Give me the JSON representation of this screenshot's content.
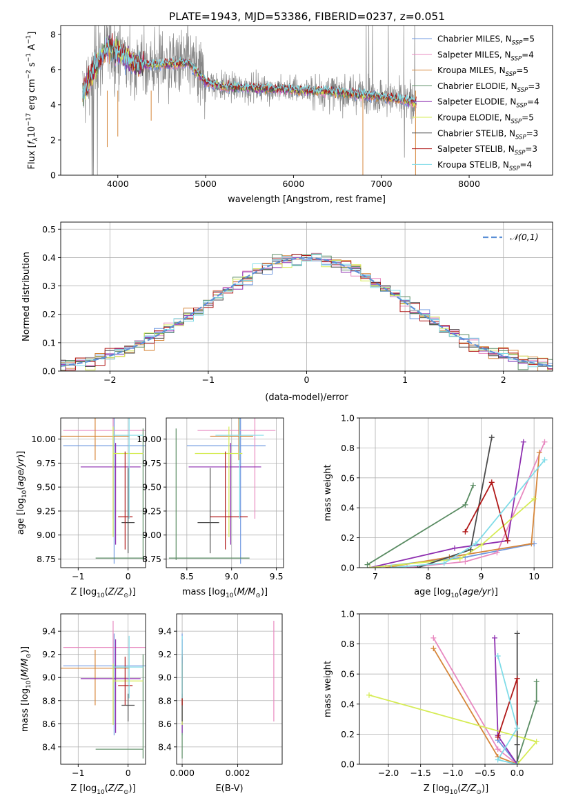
{
  "figure_title": "PLATE=1943, MJD=53386, FIBERID=0237, z=0.051",
  "colors": {
    "Chabrier MILES": "#6f98e0",
    "Salpeter MILES": "#e889c0",
    "Kroupa MILES": "#d6863a",
    "Chabrier ELODIE": "#5a8c63",
    "Salpeter ELODIE": "#8e2fb0",
    "Kroupa ELODIE": "#d6ec56",
    "Chabrier STELIB": "#4a4a4a",
    "Salpeter STELIB": "#b01818",
    "Kroupa STELIB": "#80dce8",
    "data": "#888888",
    "normal": "#5b8fd6"
  },
  "chart_data": [
    {
      "id": "spectrum",
      "type": "line",
      "xlabel": "wavelength [Angstrom, rest frame]",
      "ylabel": "Flux [f_λ 10^-17 erg cm^-2 s^-1 A^-1]",
      "xlim": [
        3350,
        8950
      ],
      "ylim": [
        0,
        8.5
      ],
      "xticks": [
        4000,
        5000,
        6000,
        7000,
        8000
      ],
      "yticks": [
        0,
        2,
        4,
        6,
        8
      ],
      "legend_position": "upper-right",
      "legend": [
        {
          "label": "Chabrier MILES, N",
          "sub": "SSP",
          "suffix": "=5"
        },
        {
          "label": "Salpeter MILES, N",
          "sub": "SSP",
          "suffix": "=4"
        },
        {
          "label": "Kroupa MILES, N",
          "sub": "SSP",
          "suffix": "=5"
        },
        {
          "label": "Chabrier ELODIE, N",
          "sub": "SSP",
          "suffix": "=3"
        },
        {
          "label": "Salpeter ELODIE, N",
          "sub": "SSP",
          "suffix": "=4"
        },
        {
          "label": "Kroupa ELODIE, N",
          "sub": "SSP",
          "suffix": "=5"
        },
        {
          "label": "Chabrier STELIB, N",
          "sub": "SSP",
          "suffix": "=3"
        },
        {
          "label": "Salpeter STELIB, N",
          "sub": "SSP",
          "suffix": "=3"
        },
        {
          "label": "Kroupa STELIB, N",
          "sub": "SSP",
          "suffix": "=4"
        }
      ],
      "model_trend": [
        [
          3600,
          4.6
        ],
        [
          3700,
          5.6
        ],
        [
          3800,
          6.6
        ],
        [
          3900,
          7.3
        ],
        [
          4000,
          7.0
        ],
        [
          4100,
          6.7
        ],
        [
          4200,
          6.3
        ],
        [
          4400,
          6.3
        ],
        [
          4600,
          6.3
        ],
        [
          4800,
          6.4
        ],
        [
          5000,
          5.3
        ],
        [
          5200,
          5.0
        ],
        [
          5500,
          4.95
        ],
        [
          6000,
          4.85
        ],
        [
          6500,
          4.7
        ],
        [
          7000,
          4.45
        ],
        [
          7400,
          4.15
        ]
      ]
    },
    {
      "id": "residuals",
      "type": "bar",
      "xlabel": "(data-model)/error",
      "ylabel": "Normed distribution",
      "xlim": [
        -2.5,
        2.5
      ],
      "ylim": [
        0,
        0.525
      ],
      "xticks": [
        -2,
        -1,
        0,
        1,
        2
      ],
      "yticks": [
        0.0,
        0.1,
        0.2,
        0.3,
        0.4,
        0.5
      ],
      "bin_width": 0.1,
      "legend": "𝒩(0,1)",
      "legend_position": "upper-right",
      "grid": true
    },
    {
      "id": "age_vs_Z",
      "type": "scatter",
      "xlabel": "Z [log10(Z/Z⊙)]",
      "ylabel": "age [log10(age/yr)]",
      "xlim": [
        -1.35,
        0.35
      ],
      "ylim": [
        8.66,
        10.22
      ],
      "xticks": [
        -1,
        0
      ],
      "yticks": [
        8.75,
        9.0,
        9.25,
        9.5,
        9.75,
        10.0
      ],
      "grid": true
    },
    {
      "id": "age_vs_mass",
      "type": "scatter",
      "xlabel": "mass [log10(M/M⊙)]",
      "xlim": [
        8.27,
        9.58
      ],
      "ylim": [
        8.66,
        10.22
      ],
      "xticks": [
        8.5,
        9.0,
        9.5
      ],
      "yticks": [
        8.75,
        9.0,
        9.25,
        9.5,
        9.75,
        10.0
      ],
      "grid": true
    },
    {
      "id": "weight_vs_age",
      "type": "line",
      "xlabel": "age [log10(age/yr)]",
      "ylabel": "mass weight",
      "xlim": [
        6.7,
        10.35
      ],
      "ylim": [
        0,
        1.0
      ],
      "xticks": [
        7,
        8,
        9,
        10
      ],
      "yticks": [
        0.0,
        0.2,
        0.4,
        0.6,
        0.8,
        1.0
      ],
      "grid": true
    },
    {
      "id": "mass_vs_Z",
      "type": "scatter",
      "xlabel": "Z [log10(Z/Z⊙)]",
      "ylabel": "mass [log10(M/M⊙)]",
      "xlim": [
        -1.35,
        0.35
      ],
      "ylim": [
        8.25,
        9.55
      ],
      "xticks": [
        -1,
        0
      ],
      "yticks": [
        8.4,
        8.6,
        8.8,
        9.0,
        9.2,
        9.4
      ],
      "grid": true
    },
    {
      "id": "mass_vs_ebv",
      "type": "scatter",
      "xlabel": "E(B-V)",
      "xlim": [
        -0.0002,
        0.0036
      ],
      "ylim": [
        8.25,
        9.55
      ],
      "xticks": [
        0.0,
        0.002
      ],
      "xtick_labels": [
        "0.000",
        "0.002"
      ],
      "yticks": [
        8.4,
        8.6,
        8.8,
        9.0,
        9.2,
        9.4
      ],
      "grid": true
    },
    {
      "id": "weight_vs_Z",
      "type": "line",
      "xlabel": "Z [log10(Z/Z⊙)]",
      "ylabel": "mass weight",
      "xlim": [
        -2.45,
        0.55
      ],
      "ylim": [
        0,
        1.0
      ],
      "xticks": [
        -2.0,
        -1.5,
        -1.0,
        -0.5,
        0.0
      ],
      "yticks": [
        0.0,
        0.2,
        0.4,
        0.6,
        0.8,
        1.0
      ],
      "grid": true
    }
  ],
  "models": [
    {
      "name": "Chabrier MILES",
      "age": [
        9.93,
        10.23,
        8.7,
        10.36
      ],
      "Z": [
        -0.28,
        -1.3,
        0.38
      ],
      "mass": [
        9.1,
        8.5,
        9.38
      ],
      "ebv": 0.0,
      "sfh_age": [
        [
          6.9,
          0.0
        ],
        [
          8.7,
          0.07
        ],
        [
          10.0,
          0.16
        ]
      ],
      "sfh_Z": [
        [
          0.0,
          0.0
        ],
        [
          -0.3,
          0.16
        ]
      ]
    },
    {
      "name": "Salpeter MILES",
      "age": [
        10.09,
        10.2,
        9.17,
        10.48
      ],
      "Z": [
        -0.3,
        -1.3,
        0.4
      ],
      "mass": [
        9.26,
        8.62,
        9.49
      ],
      "ebv": 0.0033,
      "sfh_age": [
        [
          7.6,
          0.0
        ],
        [
          8.7,
          0.04
        ],
        [
          9.3,
          0.1
        ],
        [
          10.2,
          0.84
        ]
      ],
      "sfh_Z": [
        [
          0.0,
          0.0
        ],
        [
          -0.3,
          0.1
        ],
        [
          -1.3,
          0.84
        ]
      ]
    },
    {
      "name": "Kroupa MILES",
      "age": [
        10.03,
        10.15,
        9.78,
        10.45
      ],
      "Z": [
        -0.66,
        -1.35,
        0.03
      ],
      "mass": [
        9.08,
        8.76,
        9.24
      ],
      "ebv": 0.0,
      "sfh_age": [
        [
          7.2,
          0.0
        ],
        [
          8.4,
          0.07
        ],
        [
          9.95,
          0.16
        ],
        [
          10.1,
          0.77
        ]
      ],
      "sfh_Z": [
        [
          0.0,
          0.0
        ],
        [
          -0.3,
          0.05
        ],
        [
          -1.3,
          0.77
        ]
      ]
    },
    {
      "name": "Chabrier ELODIE",
      "age": [
        8.76,
        8.74,
        8.74,
        10.11
      ],
      "Z": [
        0.3,
        -0.65,
        0.3
      ],
      "mass": [
        8.38,
        8.3,
        9.2
      ],
      "ebv": 0.0,
      "sfh_age": [
        [
          6.85,
          0.02
        ],
        [
          8.7,
          0.42
        ],
        [
          8.85,
          0.55
        ]
      ],
      "sfh_Z": [
        [
          0.0,
          0.02
        ],
        [
          0.3,
          0.42
        ],
        [
          0.3,
          0.55
        ]
      ]
    },
    {
      "name": "Salpeter ELODIE",
      "age": [
        9.71,
        9.02,
        8.9,
        9.96
      ],
      "Z": [
        -0.25,
        -0.95,
        0.25
      ],
      "mass": [
        8.99,
        8.52,
        9.33
      ],
      "ebv": 0.0,
      "sfh_age": [
        [
          6.9,
          0.0
        ],
        [
          8.5,
          0.13
        ],
        [
          9.5,
          0.18
        ],
        [
          9.8,
          0.84
        ]
      ],
      "sfh_Z": [
        [
          0.0,
          0.0
        ],
        [
          -0.3,
          0.19
        ],
        [
          -0.35,
          0.84
        ]
      ]
    },
    {
      "name": "Kroupa ELODIE",
      "age": [
        9.85,
        9.84,
        8.98,
        10.13
      ],
      "Z": [
        -0.3,
        -0.3,
        0.3
      ],
      "mass": [
        8.97,
        8.59,
        9.12
      ],
      "ebv": 0.0,
      "sfh_age": [
        [
          6.9,
          0.0
        ],
        [
          8.6,
          0.06
        ],
        [
          9.0,
          0.15
        ],
        [
          10.0,
          0.46
        ]
      ],
      "sfh_Z": [
        [
          0.0,
          0.0
        ],
        [
          0.3,
          0.15
        ],
        [
          -2.3,
          0.46
        ]
      ]
    },
    {
      "name": "Chabrier STELIB",
      "age": [
        9.13,
        9.29,
        8.81,
        9.7
      ],
      "Z": [
        0.0,
        -0.13,
        0.13
      ],
      "mass": [
        8.76,
        8.62,
        8.86
      ],
      "ebv": 0.0,
      "sfh_age": [
        [
          7.8,
          0.0
        ],
        [
          8.8,
          0.12
        ],
        [
          9.2,
          0.87
        ]
      ],
      "sfh_Z": [
        [
          0.0,
          0.0
        ],
        [
          0.0,
          0.13
        ],
        [
          0.0,
          0.87
        ]
      ]
    },
    {
      "name": "Salpeter STELIB",
      "age": [
        9.19,
        9.0,
        8.85,
        9.87
      ],
      "Z": [
        -0.06,
        -0.2,
        0.09
      ],
      "mass": [
        8.93,
        8.76,
        9.18
      ],
      "ebv": 0.0,
      "sfh_age": [
        [
          8.7,
          0.24
        ],
        [
          9.2,
          0.57
        ],
        [
          9.5,
          0.18
        ]
      ],
      "sfh_Z": [
        [
          0.0,
          0.24
        ],
        [
          0.0,
          0.57
        ],
        [
          -0.3,
          0.18
        ]
      ]
    },
    {
      "name": "Kroupa STELIB",
      "age": [
        10.04,
        10.11,
        9.17,
        10.44
      ],
      "Z": [
        0.02,
        -0.3,
        0.3
      ],
      "mass": [
        9.09,
        8.82,
        9.36
      ],
      "ebv": 0.0,
      "sfh_age": [
        [
          7.3,
          0.0
        ],
        [
          8.3,
          0.03
        ],
        [
          8.9,
          0.16
        ],
        [
          10.2,
          0.72
        ]
      ],
      "sfh_Z": [
        [
          0.0,
          0.0
        ],
        [
          -0.3,
          0.03
        ],
        [
          0.0,
          0.24
        ],
        [
          -0.3,
          0.72
        ]
      ]
    }
  ]
}
